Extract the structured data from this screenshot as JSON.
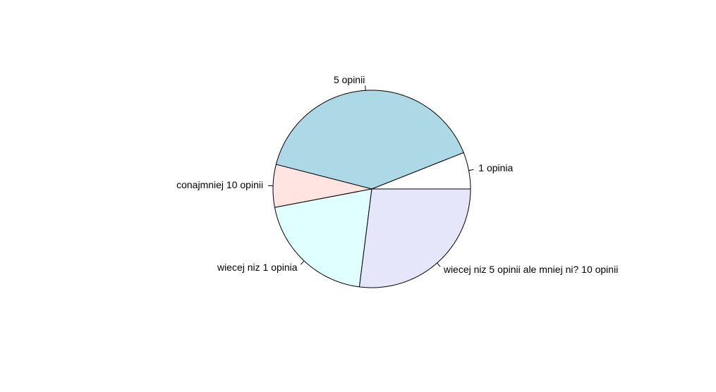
{
  "chart_data": {
    "type": "pie",
    "title": "",
    "start_angle_deg": 0,
    "direction": "counterclockwise",
    "slices": [
      {
        "label": "1 opinia",
        "value": 6,
        "color": "#ffffff"
      },
      {
        "label": "5 opinii",
        "value": 40,
        "color": "#add8e6"
      },
      {
        "label": "conajmniej 10 opinii",
        "value": 7,
        "color": "#ffe4e1"
      },
      {
        "label": "wiecej niz 1 opinia",
        "value": 20,
        "color": "#e0ffff"
      },
      {
        "label": "wiecej niz 5 opinii ale mniej ni? 10 opinii",
        "value": 27,
        "color": "#e6e6fa"
      }
    ]
  }
}
